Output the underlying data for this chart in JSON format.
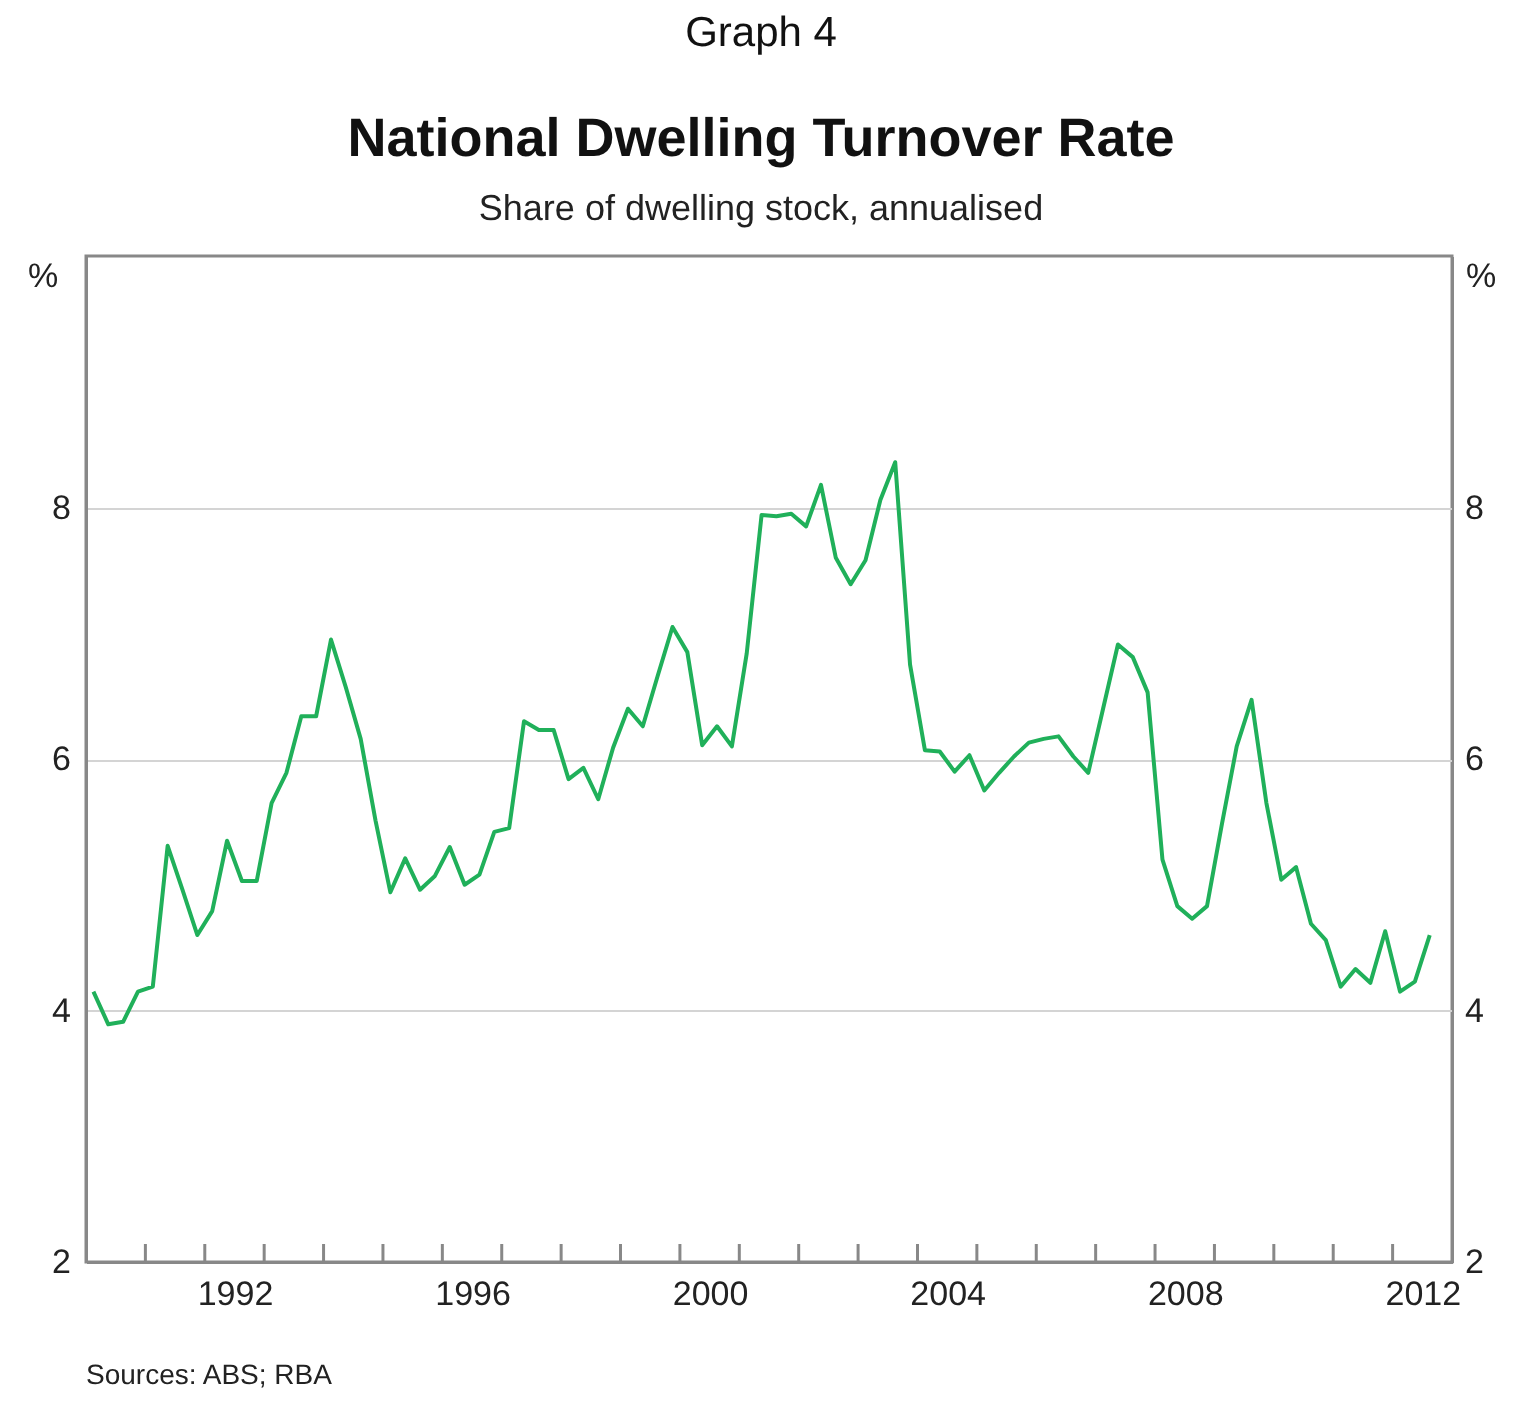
{
  "chart_data": {
    "type": "line",
    "title": "National Dwelling Turnover Rate",
    "subtitle": "Share of dwelling stock, annualised",
    "ylabel": "%",
    "y2label": "%",
    "annotations": [
      "Graph 4",
      "Sources: ABS; RBA"
    ],
    "x": [
      1990.125,
      1990.375,
      1990.625,
      1990.875,
      1991.125,
      1991.375,
      1991.625,
      1991.875,
      1992.125,
      1992.375,
      1992.625,
      1992.875,
      1993.125,
      1993.375,
      1993.625,
      1993.875,
      1994.125,
      1994.375,
      1994.625,
      1994.875,
      1995.125,
      1995.375,
      1995.625,
      1995.875,
      1996.125,
      1996.375,
      1996.625,
      1996.875,
      1997.125,
      1997.375,
      1997.625,
      1997.875,
      1998.125,
      1998.375,
      1998.625,
      1998.875,
      1999.125,
      1999.375,
      1999.625,
      1999.875,
      2000.125,
      2000.375,
      2000.625,
      2000.875,
      2001.125,
      2001.375,
      2001.625,
      2001.875,
      2002.125,
      2002.375,
      2002.625,
      2002.875,
      2003.125,
      2003.375,
      2003.625,
      2003.875,
      2004.125,
      2004.375,
      2004.625,
      2004.875,
      2005.125,
      2005.375,
      2005.625,
      2005.875,
      2006.125,
      2006.375,
      2006.625,
      2006.875,
      2007.125,
      2007.375,
      2007.625,
      2007.875,
      2008.125,
      2008.375,
      2008.625,
      2008.875,
      2009.125,
      2009.375,
      2009.625,
      2009.875,
      2010.125,
      2010.375,
      2010.625,
      2010.875,
      2011.125,
      2011.375,
      2011.625,
      2011.875,
      2012.125,
      2012.375,
      2012.625
    ],
    "series": [
      {
        "color": "#20b05a",
        "values": [
          4.15,
          3.89,
          3.91,
          4.15,
          4.19,
          5.31,
          4.96,
          4.6,
          4.79,
          5.35,
          5.03,
          5.03,
          5.65,
          5.89,
          6.34,
          6.34,
          6.95,
          6.57,
          6.16,
          5.51,
          4.94,
          5.21,
          4.96,
          5.07,
          5.3,
          5.0,
          5.08,
          5.42,
          5.45,
          6.3,
          6.23,
          6.23,
          5.84,
          5.93,
          5.68,
          6.09,
          6.4,
          6.26,
          6.66,
          7.05,
          6.85,
          6.11,
          6.26,
          6.1,
          6.84,
          7.94,
          7.93,
          7.95,
          7.85,
          8.18,
          7.6,
          7.39,
          7.58,
          8.06,
          8.36,
          6.75,
          6.07,
          6.06,
          5.9,
          6.03,
          5.75,
          5.89,
          6.02,
          6.13,
          6.16,
          6.18,
          6.02,
          5.89,
          6.4,
          6.91,
          6.81,
          6.53,
          5.2,
          4.83,
          4.73,
          4.83,
          5.48,
          6.1,
          6.47,
          5.65,
          5.04,
          5.14,
          4.69,
          4.56,
          4.19,
          4.33,
          4.22,
          4.63,
          4.15,
          4.23,
          4.6
        ]
      }
    ],
    "xlim": [
      1990,
      2013
    ],
    "xticks": [
      {
        "value": 1991,
        "label": null
      },
      {
        "value": 1992,
        "label": null
      },
      {
        "value": 1993,
        "label": null
      },
      {
        "value": 1994,
        "label": null
      },
      {
        "value": 1995,
        "label": null
      },
      {
        "value": 1996,
        "label": null
      },
      {
        "value": 1997,
        "label": null
      },
      {
        "value": 1998,
        "label": null
      },
      {
        "value": 1999,
        "label": null
      },
      {
        "value": 2000,
        "label": null
      },
      {
        "value": 2001,
        "label": null
      },
      {
        "value": 2002,
        "label": null
      },
      {
        "value": 2003,
        "label": null
      },
      {
        "value": 2004,
        "label": null
      },
      {
        "value": 2005,
        "label": null
      },
      {
        "value": 2006,
        "label": null
      },
      {
        "value": 2007,
        "label": null
      },
      {
        "value": 2008,
        "label": null
      },
      {
        "value": 2009,
        "label": null
      },
      {
        "value": 2010,
        "label": null
      },
      {
        "value": 2011,
        "label": null
      },
      {
        "value": 2012,
        "label": null
      },
      {
        "value": 1992.5,
        "label": "1992"
      },
      {
        "value": 1996.5,
        "label": "1996"
      },
      {
        "value": 2000.5,
        "label": "2000"
      },
      {
        "value": 2004.5,
        "label": "2004"
      },
      {
        "value": 2008.5,
        "label": "2008"
      },
      {
        "value": 2012.5,
        "label": "2012"
      }
    ],
    "ylim": [
      2,
      10
    ],
    "yticks": [
      2,
      4,
      6,
      8
    ],
    "y2lim": [
      2,
      10
    ],
    "y2ticks": [
      2,
      4,
      6,
      8
    ],
    "grid": "y"
  }
}
